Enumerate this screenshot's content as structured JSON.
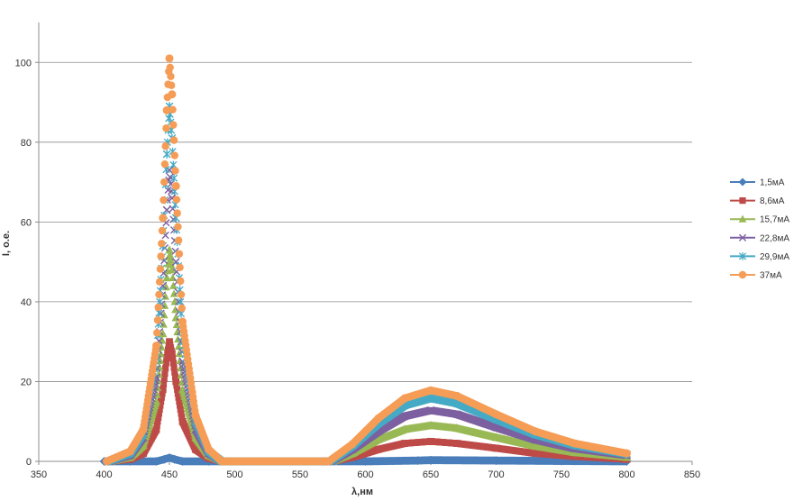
{
  "chart_data": {
    "type": "scatter",
    "title": "",
    "xlabel": "λ,нм",
    "ylabel": "I, о.е.",
    "xlim": [
      350,
      850
    ],
    "ylim": [
      0,
      110
    ],
    "x_ticks": [
      350,
      400,
      450,
      500,
      550,
      600,
      650,
      700,
      750,
      800,
      850
    ],
    "y_ticks": [
      0,
      20,
      40,
      60,
      80,
      100
    ],
    "grid": "horizontal",
    "legend_position": "right",
    "series": [
      {
        "name": "1,5мА",
        "color": "#4a7ebb",
        "marker": "diamond",
        "points": [
          [
            400,
            0
          ],
          [
            420,
            0
          ],
          [
            440,
            0
          ],
          [
            446,
            0.5
          ],
          [
            450,
            0.9
          ],
          [
            454,
            0.5
          ],
          [
            460,
            0
          ],
          [
            480,
            0
          ],
          [
            490,
            0
          ],
          [
            570,
            0
          ],
          [
            600,
            0
          ],
          [
            640,
            0.2
          ],
          [
            650,
            0.3
          ],
          [
            700,
            0.2
          ],
          [
            750,
            0.1
          ],
          [
            800,
            0
          ]
        ]
      },
      {
        "name": "8,6мА",
        "color": "#be4b48",
        "marker": "square",
        "points": [
          [
            405,
            0
          ],
          [
            420,
            0.5
          ],
          [
            430,
            2
          ],
          [
            440,
            8
          ],
          [
            445,
            18
          ],
          [
            448,
            26
          ],
          [
            450,
            30
          ],
          [
            452,
            27
          ],
          [
            455,
            20
          ],
          [
            460,
            10
          ],
          [
            470,
            3
          ],
          [
            480,
            0.8
          ],
          [
            490,
            0
          ],
          [
            575,
            0
          ],
          [
            590,
            1
          ],
          [
            610,
            3
          ],
          [
            630,
            4.5
          ],
          [
            650,
            5
          ],
          [
            670,
            4.5
          ],
          [
            700,
            3.3
          ],
          [
            730,
            2
          ],
          [
            760,
            1.2
          ],
          [
            800,
            0.5
          ]
        ]
      },
      {
        "name": "15,7мА",
        "color": "#98b954",
        "marker": "triangle",
        "points": [
          [
            405,
            0
          ],
          [
            420,
            1
          ],
          [
            430,
            4
          ],
          [
            440,
            15
          ],
          [
            445,
            32
          ],
          [
            448,
            46
          ],
          [
            450,
            53
          ],
          [
            452,
            48
          ],
          [
            455,
            36
          ],
          [
            460,
            18
          ],
          [
            470,
            6
          ],
          [
            480,
            1.5
          ],
          [
            490,
            0
          ],
          [
            575,
            0
          ],
          [
            590,
            2
          ],
          [
            610,
            5.5
          ],
          [
            630,
            8
          ],
          [
            650,
            9
          ],
          [
            670,
            8.3
          ],
          [
            700,
            6
          ],
          [
            730,
            3.8
          ],
          [
            760,
            2.2
          ],
          [
            800,
            1
          ]
        ]
      },
      {
        "name": "22,8мА",
        "color": "#7d60a0",
        "marker": "x",
        "points": [
          [
            404,
            0
          ],
          [
            420,
            1.5
          ],
          [
            430,
            6
          ],
          [
            440,
            21
          ],
          [
            445,
            44
          ],
          [
            448,
            63
          ],
          [
            450,
            73
          ],
          [
            452,
            66
          ],
          [
            455,
            50
          ],
          [
            460,
            25
          ],
          [
            470,
            8
          ],
          [
            480,
            2
          ],
          [
            490,
            0
          ],
          [
            574,
            0
          ],
          [
            590,
            3
          ],
          [
            610,
            7.5
          ],
          [
            630,
            11.3
          ],
          [
            650,
            12.8
          ],
          [
            670,
            11.8
          ],
          [
            700,
            8.5
          ],
          [
            730,
            5.4
          ],
          [
            760,
            3.2
          ],
          [
            800,
            1.5
          ]
        ]
      },
      {
        "name": "29,9мА",
        "color": "#46aac5",
        "marker": "star",
        "points": [
          [
            403,
            0
          ],
          [
            420,
            2
          ],
          [
            430,
            7
          ],
          [
            440,
            26
          ],
          [
            445,
            54
          ],
          [
            448,
            77
          ],
          [
            450,
            89
          ],
          [
            452,
            81
          ],
          [
            455,
            61
          ],
          [
            460,
            31
          ],
          [
            470,
            10
          ],
          [
            480,
            2.5
          ],
          [
            490,
            0
          ],
          [
            573,
            0
          ],
          [
            590,
            3.8
          ],
          [
            610,
            9.5
          ],
          [
            630,
            14
          ],
          [
            650,
            15.8
          ],
          [
            670,
            14.5
          ],
          [
            700,
            10.5
          ],
          [
            730,
            6.7
          ],
          [
            760,
            4
          ],
          [
            800,
            1.8
          ]
        ]
      },
      {
        "name": "37мА",
        "color": "#f59d56",
        "marker": "circle",
        "points": [
          [
            402,
            0
          ],
          [
            420,
            2.5
          ],
          [
            430,
            8
          ],
          [
            440,
            29
          ],
          [
            445,
            61
          ],
          [
            448,
            88
          ],
          [
            450,
            101
          ],
          [
            452,
            92
          ],
          [
            455,
            69
          ],
          [
            460,
            35
          ],
          [
            470,
            11.5
          ],
          [
            480,
            3
          ],
          [
            490,
            0
          ],
          [
            572,
            0
          ],
          [
            590,
            4.3
          ],
          [
            610,
            10.8
          ],
          [
            630,
            15.8
          ],
          [
            650,
            17.8
          ],
          [
            670,
            16.4
          ],
          [
            700,
            11.8
          ],
          [
            730,
            7.5
          ],
          [
            760,
            4.5
          ],
          [
            800,
            2
          ]
        ]
      }
    ]
  }
}
